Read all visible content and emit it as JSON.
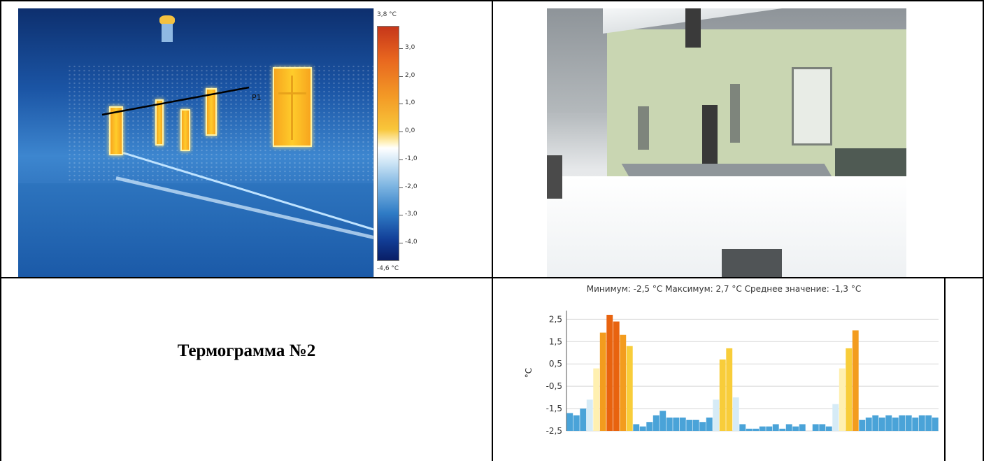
{
  "thermogram": {
    "scale_max_label": "3,8 °C",
    "scale_min_label": "-4,6 °C",
    "ticks": [
      "3,0",
      "2,0",
      "1,0",
      "0,0",
      "-1,0",
      "-2,0",
      "-3,0",
      "-4,0"
    ],
    "profile_label": "P1"
  },
  "caption": {
    "title": "Термограмма №2"
  },
  "chart_data": {
    "type": "bar",
    "title": "Минимум: -2,5 °C Максимум: 2,7 °C Среднее значение: -1,3 °C",
    "ylabel": "°C",
    "xlabel": "",
    "ylim": [
      -2.5,
      2.7
    ],
    "yticks": [
      "2,5",
      "1,5",
      "0,5",
      "-0,5",
      "-1,5",
      "-2,5"
    ],
    "grid": true,
    "values": [
      -1.7,
      -1.8,
      -1.5,
      -1.1,
      0.3,
      1.9,
      2.7,
      2.4,
      1.8,
      1.3,
      -2.2,
      -2.3,
      -2.1,
      -1.8,
      -1.6,
      -1.9,
      -1.9,
      -1.9,
      -2.0,
      -2.0,
      -2.1,
      -1.9,
      -1.1,
      0.7,
      1.2,
      -1.0,
      -2.2,
      -2.4,
      -2.4,
      -2.3,
      -2.3,
      -2.2,
      -2.4,
      -2.2,
      -2.3,
      -2.2,
      -2.5,
      -2.2,
      -2.2,
      -2.3,
      -1.3,
      0.3,
      1.2,
      2.0,
      -2.0,
      -1.9,
      -1.8,
      -1.9,
      -1.8,
      -1.9,
      -1.8,
      -1.8,
      -1.9,
      -1.8,
      -1.8,
      -1.9
    ]
  },
  "colors": {
    "hot_dark": "#e8630f",
    "hot_mid": "#f39c1e",
    "warm": "#f8cd3a",
    "pale_warm": "#fff0b0",
    "pale_cold": "#d6ebf6",
    "cold": "#4aa3d8",
    "grid": "#d8d8d8"
  }
}
